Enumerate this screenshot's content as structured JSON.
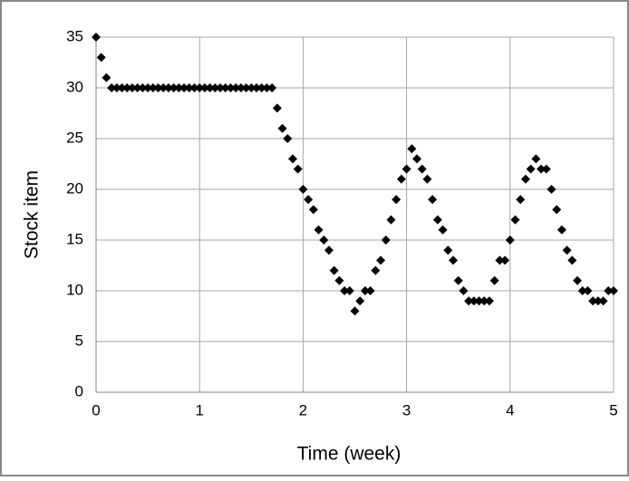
{
  "chart_data": {
    "type": "scatter",
    "xlabel": "Time (week)",
    "ylabel": "Stock item",
    "x": [
      0,
      0.05,
      0.1,
      0.15,
      0.2,
      0.25,
      0.3,
      0.35,
      0.4,
      0.45,
      0.5,
      0.55,
      0.6,
      0.65,
      0.7,
      0.75,
      0.8,
      0.85,
      0.9,
      0.95,
      1,
      1.05,
      1.1,
      1.15,
      1.2,
      1.25,
      1.3,
      1.35,
      1.4,
      1.45,
      1.5,
      1.55,
      1.6,
      1.65,
      1.7,
      1.75,
      1.8,
      1.85,
      1.9,
      1.95,
      2,
      2.05,
      2.1,
      2.15,
      2.2,
      2.25,
      2.3,
      2.35,
      2.4,
      2.45,
      2.5,
      2.55,
      2.6,
      2.65,
      2.7,
      2.75,
      2.8,
      2.85,
      2.9,
      2.95,
      3,
      3.05,
      3.1,
      3.15,
      3.2,
      3.25,
      3.3,
      3.35,
      3.4,
      3.45,
      3.5,
      3.55,
      3.6,
      3.65,
      3.7,
      3.75,
      3.8,
      3.85,
      3.9,
      3.95,
      4,
      4.05,
      4.1,
      4.15,
      4.2,
      4.25,
      4.3,
      4.35,
      4.4,
      4.45,
      4.5,
      4.55,
      4.6,
      4.65,
      4.7,
      4.75,
      4.8,
      4.85,
      4.9,
      4.95,
      5
    ],
    "values": [
      35,
      33,
      31,
      30,
      30,
      30,
      30,
      30,
      30,
      30,
      30,
      30,
      30,
      30,
      30,
      30,
      30,
      30,
      30,
      30,
      30,
      30,
      30,
      30,
      30,
      30,
      30,
      30,
      30,
      30,
      30,
      30,
      30,
      30,
      30,
      28,
      26,
      25,
      23,
      22,
      20,
      19,
      18,
      16,
      15,
      14,
      12,
      11,
      10,
      10,
      8,
      9,
      10,
      10,
      12,
      13,
      15,
      17,
      19,
      21,
      22,
      24,
      23,
      22,
      21,
      19,
      17,
      16,
      14,
      13,
      11,
      10,
      9,
      9,
      9,
      9,
      9,
      11,
      13,
      13,
      15,
      17,
      19,
      21,
      22,
      23,
      22,
      22,
      20,
      18,
      16,
      14,
      13,
      11,
      10,
      10,
      9,
      9,
      9,
      10,
      10
    ],
    "color": "#000000",
    "xlim": [
      0,
      5
    ],
    "xticks": [
      0,
      1,
      2,
      3,
      4,
      5
    ],
    "ylim": [
      0,
      35
    ],
    "yticks": [
      0,
      5,
      10,
      15,
      20,
      25,
      30,
      35
    ],
    "grid": true
  }
}
